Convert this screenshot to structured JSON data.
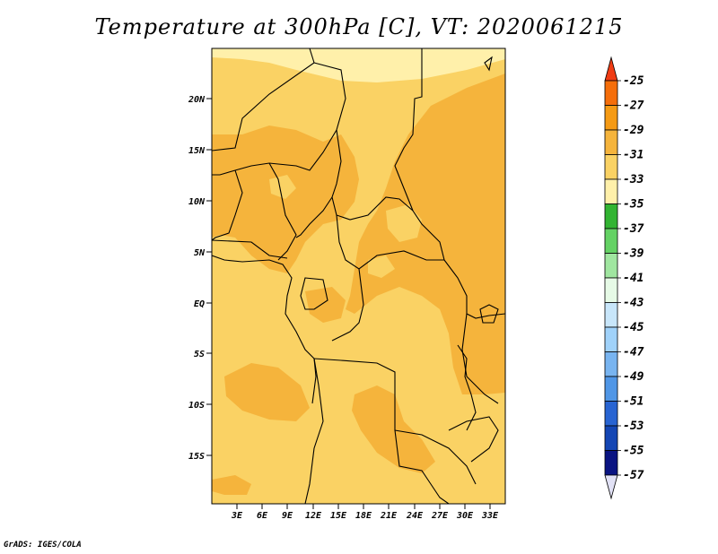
{
  "title": "Temperature at 300hPa [C], VT: 2020061215",
  "credit": "GrADS: IGES/COLA",
  "map": {
    "lat_ticks": [
      "20N",
      "15N",
      "10N",
      "5N",
      "EQ",
      "5S",
      "10S",
      "15S"
    ],
    "lon_ticks": [
      "3E",
      "6E",
      "9E",
      "12E",
      "15E",
      "18E",
      "21E",
      "24E",
      "27E",
      "30E",
      "33E"
    ]
  },
  "colorbar": {
    "labels": [
      "-25",
      "-27",
      "-29",
      "-31",
      "-33",
      "-35",
      "-37",
      "-39",
      "-41",
      "-43",
      "-45",
      "-47",
      "-49",
      "-51",
      "-53",
      "-55",
      "-57"
    ],
    "colors": [
      "#f03c14",
      "#f56e0a",
      "#f59a14",
      "#f5b43c",
      "#fad264",
      "#fff0aa",
      "#32b432",
      "#64d264",
      "#a0e6a0",
      "#e6fae6",
      "#c8e6fa",
      "#a0d2fa",
      "#78b4f0",
      "#5096e6",
      "#2864d2",
      "#1446b4",
      "#0a1482",
      "#e1e1f5"
    ]
  },
  "colors": {
    "dominant_mid": "#fad264",
    "warm": "#f5b43c",
    "cool": "#fff0aa"
  }
}
